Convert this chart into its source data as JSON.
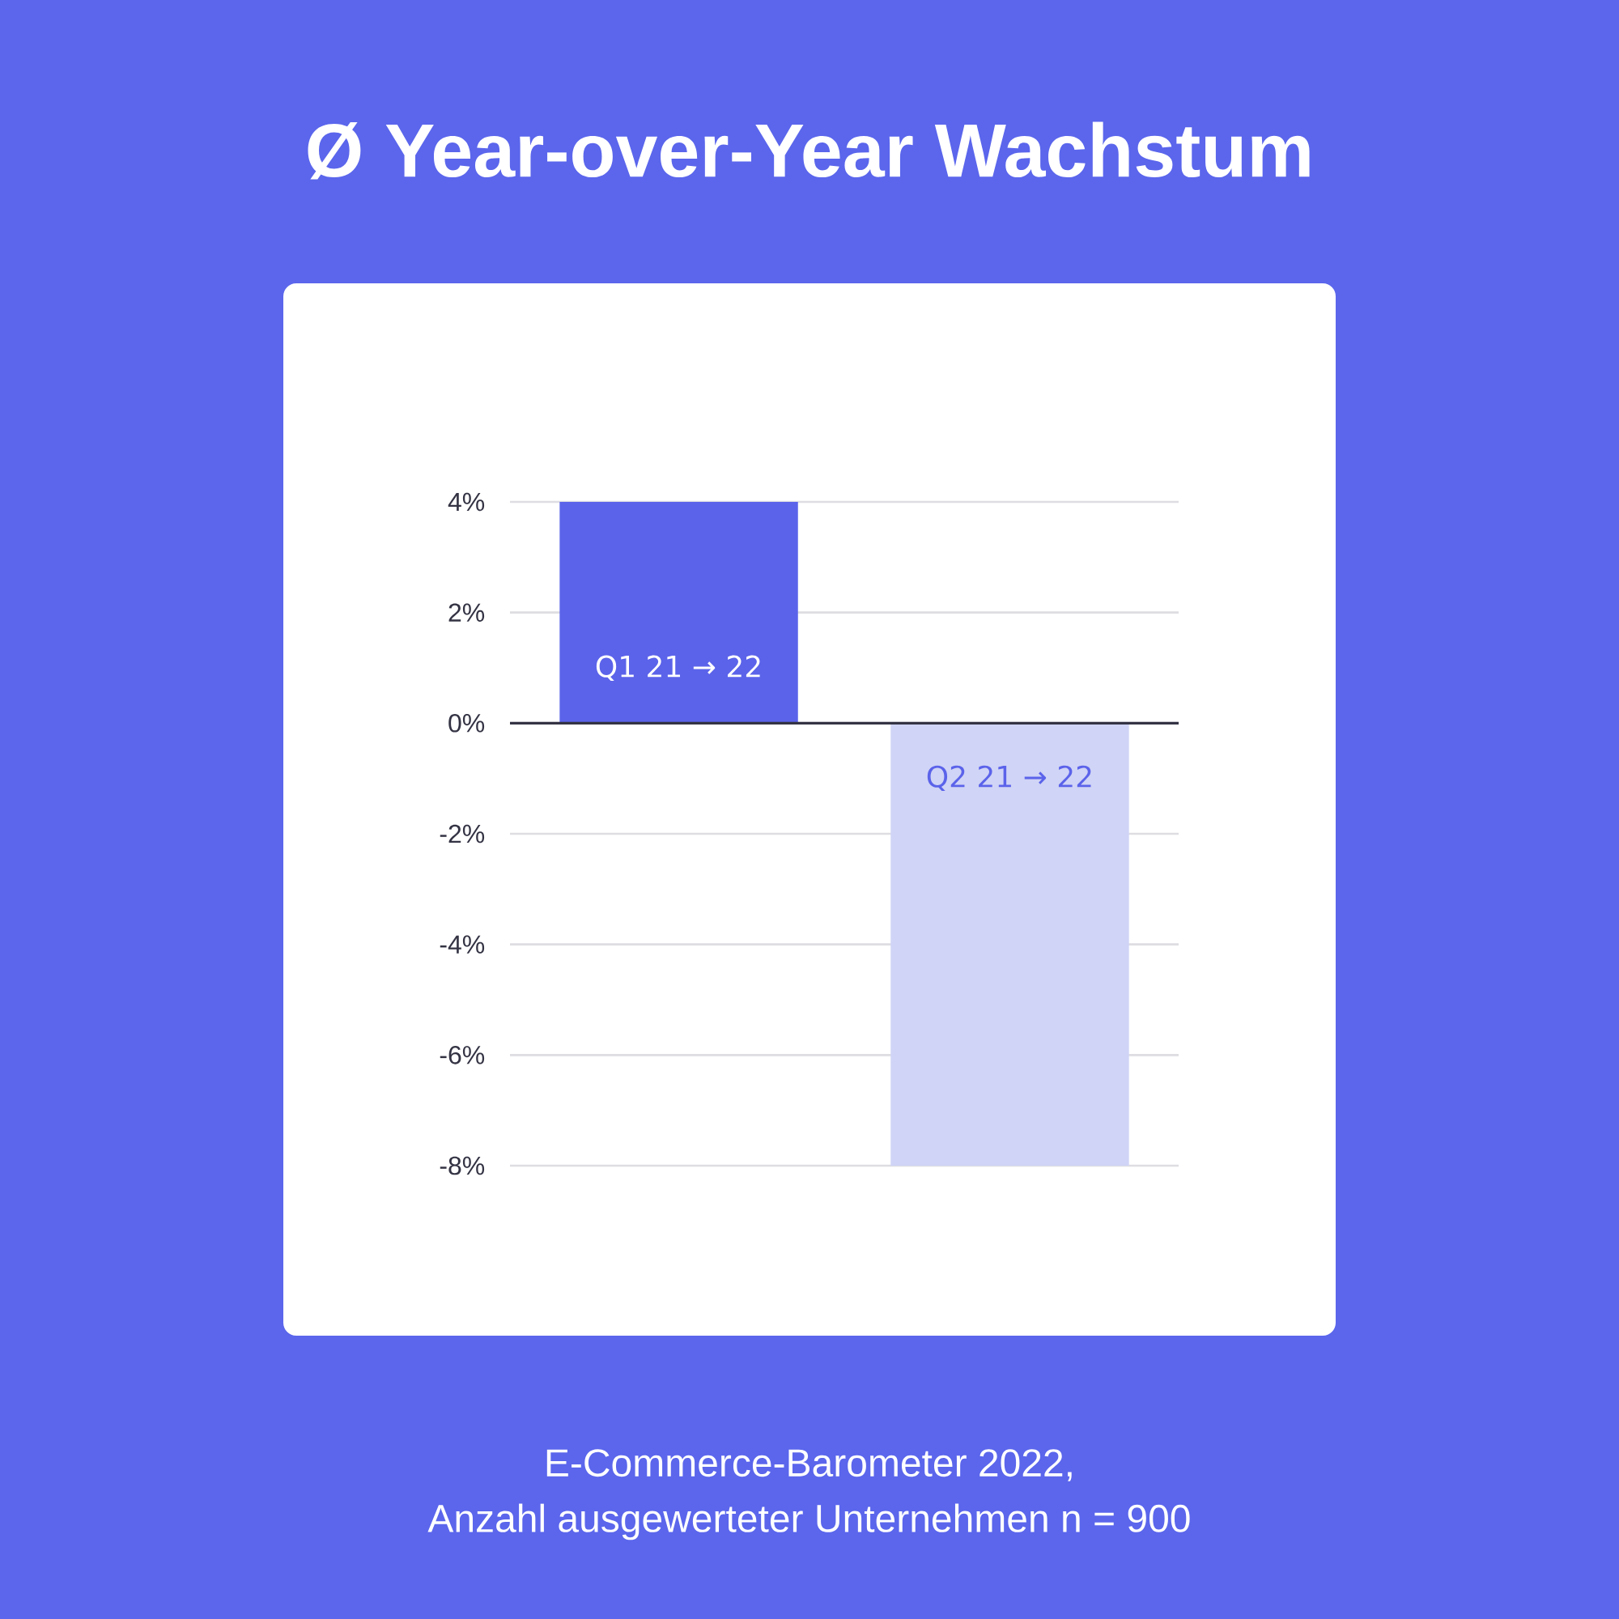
{
  "chart_data": {
    "type": "bar",
    "title": "Ø Year-over-Year Wachstum",
    "categories": [
      "Q1 21 → 22",
      "Q2 21 → 22"
    ],
    "values": [
      4,
      -8
    ],
    "colors": [
      "#5b63ea",
      "#d0d4f6"
    ],
    "ylim": [
      -8,
      4
    ],
    "yticks": [
      {
        "value": 4,
        "label": "4%"
      },
      {
        "value": 2,
        "label": "2%"
      },
      {
        "value": 0,
        "label": "0%"
      },
      {
        "value": -2,
        "label": "-2%"
      },
      {
        "value": -4,
        "label": "-4%"
      },
      {
        "value": -6,
        "label": "-6%"
      },
      {
        "value": -8,
        "label": "-8%"
      }
    ],
    "grid": "y",
    "annotations": [
      "E-Commerce-Barometer 2022,",
      "Anzahl ausgewerteter Unternehmen n = 900"
    ]
  }
}
